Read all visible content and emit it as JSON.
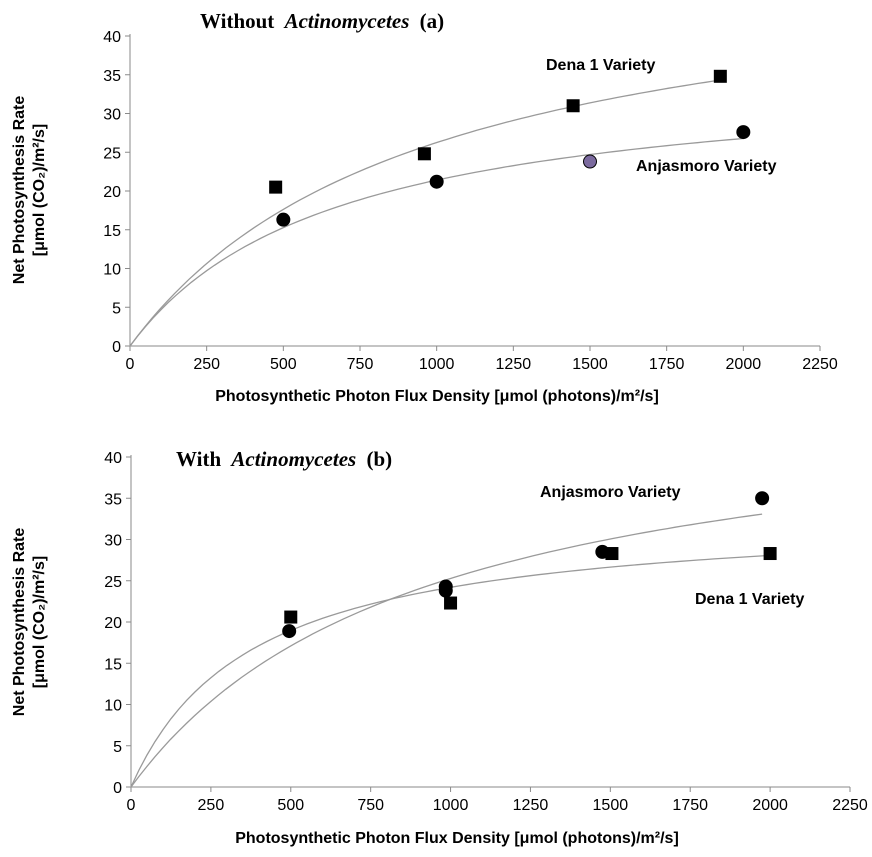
{
  "chart_data": [
    {
      "type": "scatter",
      "title_plain": "Without",
      "title_italic": "Actinomycetes",
      "title_suffix": "(a)",
      "xlabel": "Photosynthetic Photon Flux Density [μmol (photons)/m²/s]",
      "ylabel_line1": "Net Photosynthesis Rate",
      "ylabel_line2": "[μmol (CO₂)/m²/s]",
      "xlim": [
        0,
        2250
      ],
      "ylim": [
        0,
        40
      ],
      "xticks": [
        "0",
        "250",
        "500",
        "750",
        "1000",
        "1250",
        "1500",
        "1750",
        "2000",
        "2250"
      ],
      "yticks": [
        "0",
        "5",
        "10",
        "15",
        "20",
        "25",
        "30",
        "35",
        "40"
      ],
      "grid": false,
      "series": [
        {
          "name": "Dena 1 Variety",
          "marker": "square",
          "color": "#000000",
          "x": [
            475,
            960,
            1445,
            1925
          ],
          "y": [
            20.5,
            24.8,
            31.0,
            34.8
          ],
          "fit": {
            "a": 51.4,
            "b": 958
          },
          "fit_x_end": 1925
        },
        {
          "name": "Anjasmoro Variety",
          "marker": "circle",
          "color": "#000000",
          "x": [
            500,
            1000,
            1500,
            2000
          ],
          "y": [
            16.3,
            21.2,
            23.8,
            27.6
          ],
          "point_colors": [
            "#000000",
            "#000000",
            "#7b6a9e",
            "#000000"
          ],
          "fit": {
            "a": 35.74,
            "b": 670
          },
          "fit_x_end": 2000
        }
      ]
    },
    {
      "type": "scatter",
      "title_plain": "With",
      "title_italic": "Actinomycetes",
      "title_suffix": "(b)",
      "xlabel": "Photosynthetic Photon Flux Density [μmol (photons)/m²/s]",
      "ylabel_line1": "Net Photosynthesis Rate",
      "ylabel_line2": "[μmol (CO₂)/m²/s]",
      "xlim": [
        0,
        2250
      ],
      "ylim": [
        0,
        40
      ],
      "xticks": [
        "0",
        "250",
        "500",
        "750",
        "1000",
        "1250",
        "1500",
        "1750",
        "2000",
        "2250"
      ],
      "yticks": [
        "0",
        "5",
        "10",
        "15",
        "20",
        "25",
        "30",
        "35",
        "40"
      ],
      "grid": false,
      "series": [
        {
          "name": "Anjasmoro Variety",
          "marker": "circle",
          "color": "#000000",
          "x": [
            495,
            985,
            985,
            1475,
            1975
          ],
          "y": [
            18.9,
            24.3,
            23.8,
            28.5,
            35.0
          ],
          "fit": {
            "a": 48.4,
            "b": 915
          },
          "fit_x_end": 1975
        },
        {
          "name": "Dena 1 Variety",
          "marker": "square",
          "color": "#000000",
          "x": [
            500,
            1000,
            1505,
            2000
          ],
          "y": [
            20.6,
            22.3,
            28.3,
            28.3
          ],
          "fit": {
            "a": 33.4,
            "b": 380
          },
          "fit_x_end": 2000
        }
      ]
    }
  ]
}
